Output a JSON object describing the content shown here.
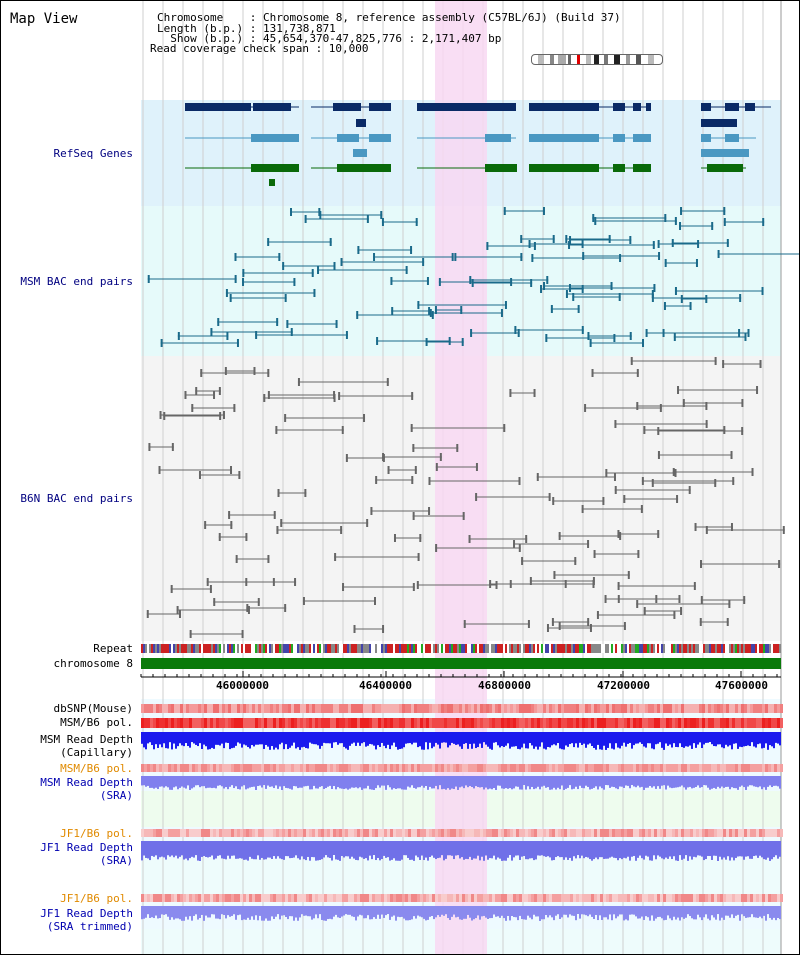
{
  "title": "Map View",
  "header": {
    "line1": "Chromosome    : Chromosome 8, reference assembly (C57BL/6J) (Build 37)",
    "line2": "Length (b.p.) : 131,738,871",
    "line3": "  Show (b.p.) : 45,654,370-47,825,776 : 2,171,407 bp",
    "line4": "Read coverage check span : 10,000"
  },
  "tracks": {
    "refseq": "RefSeq Genes",
    "msm_bac": "MSM BAC end pairs",
    "b6n_bac": "B6N BAC end pairs",
    "repeat": "Repeat",
    "chromosome": "chromosome 8",
    "dbsnp": "dbSNP(Mouse)",
    "msm_b6_pol": "MSM/B6 pol.",
    "msm_depth_cap_1": "MSM Read Depth",
    "msm_depth_cap_2": "(Capillary)",
    "msm_b6_pol2": "MSM/B6 pol.",
    "msm_depth_sra_1": "MSM Read Depth",
    "msm_depth_sra_2": "(SRA)",
    "jf1_b6_pol": "JF1/B6 pol.",
    "jf1_depth_sra_1": "JF1 Read Depth",
    "jf1_depth_sra_2": "(SRA)",
    "jf1_b6_pol2": "JF1/B6 pol.",
    "jf1_depth_trim_1": "JF1 Read Depth",
    "jf1_depth_trim_2": "(SRA trimmed)"
  },
  "axis": {
    "ticks": [
      "46000000",
      "46400000",
      "46800000",
      "47200000",
      "47600000"
    ]
  },
  "colors": {
    "refseq_bg": "#dff2fb",
    "msm_bg": "#e6fafa",
    "b6n_bg": "#f4f4f4",
    "highlight": "#f8d8f2",
    "navy_gene": "#0a2a66",
    "teal_gene": "#4a98c2",
    "green_gene": "#0a6a0a",
    "chrom": "#0a7a0a"
  }
}
